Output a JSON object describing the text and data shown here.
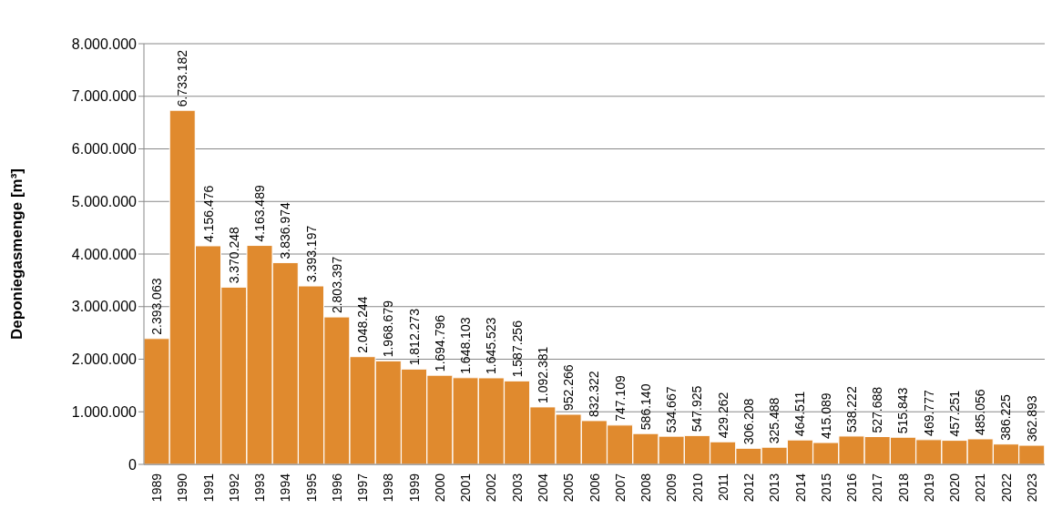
{
  "chart_data": {
    "type": "bar",
    "ylabel": "Deponiegasmenge [m³]",
    "categories": [
      "1989",
      "1990",
      "1991",
      "1992",
      "1993",
      "1994",
      "1995",
      "1996",
      "1997",
      "1998",
      "1999",
      "2000",
      "2001",
      "2002",
      "2003",
      "2004",
      "2005",
      "2006",
      "2007",
      "2008",
      "2009",
      "2010",
      "2011",
      "2012",
      "2013",
      "2014",
      "2015",
      "2016",
      "2017",
      "2018",
      "2019",
      "2020",
      "2021",
      "2022",
      "2023"
    ],
    "values": [
      2393063,
      6733182,
      4156476,
      3370248,
      4163489,
      3836974,
      3393197,
      2803397,
      2048244,
      1968679,
      1812273,
      1694796,
      1648103,
      1645523,
      1587256,
      1092381,
      952266,
      832322,
      747109,
      586140,
      534667,
      547925,
      429262,
      306208,
      325488,
      464511,
      415089,
      538222,
      527688,
      515843,
      469777,
      457251,
      485056,
      386225,
      362893
    ],
    "value_labels": [
      "2.393.063",
      "6.733.182",
      "4.156.476",
      "3.370.248",
      "4.163.489",
      "3.836.974",
      "3.393.197",
      "2.803.397",
      "2.048.244",
      "1.968.679",
      "1.812.273",
      "1.694.796",
      "1.648.103",
      "1.645.523",
      "1.587.256",
      "1.092.381",
      "952.266",
      "832.322",
      "747.109",
      "586.140",
      "534.667",
      "547.925",
      "429.262",
      "306.208",
      "325.488",
      "464.511",
      "415.089",
      "538.222",
      "527.688",
      "515.843",
      "469.777",
      "457.251",
      "485.056",
      "386.225",
      "362.893"
    ],
    "color": "#e08a2e",
    "ylim": [
      0,
      8000000
    ],
    "yticks": [
      {
        "value": 0,
        "label": "0"
      },
      {
        "value": 1000000,
        "label": "1.000.000"
      },
      {
        "value": 2000000,
        "label": "2.000.000"
      },
      {
        "value": 3000000,
        "label": "3.000.000"
      },
      {
        "value": 4000000,
        "label": "4.000.000"
      },
      {
        "value": 5000000,
        "label": "5.000.000"
      },
      {
        "value": 6000000,
        "label": "6.000.000"
      },
      {
        "value": 7000000,
        "label": "7.000.000"
      },
      {
        "value": 8000000,
        "label": "8.000.000"
      }
    ],
    "grid": "y"
  }
}
